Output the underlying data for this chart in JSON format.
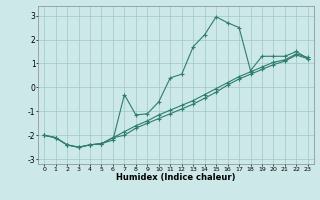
{
  "xlabel": "Humidex (Indice chaleur)",
  "background_color": "#cce8e8",
  "grid_color": "#a0c8c8",
  "line_color": "#2e7d6e",
  "marker": "+",
  "markersize": 3.5,
  "linewidth": 0.8,
  "xlim": [
    -0.5,
    23.5
  ],
  "ylim": [
    -3.2,
    3.4
  ],
  "xticks": [
    0,
    1,
    2,
    3,
    4,
    5,
    6,
    7,
    8,
    9,
    10,
    11,
    12,
    13,
    14,
    15,
    16,
    17,
    18,
    19,
    20,
    21,
    22,
    23
  ],
  "yticks": [
    -3,
    -2,
    -1,
    0,
    1,
    2,
    3
  ],
  "series1_x": [
    0,
    1,
    2,
    3,
    4,
    5,
    6,
    7,
    8,
    9,
    10,
    11,
    12,
    13,
    14,
    15,
    16,
    17,
    18,
    19,
    20,
    21,
    22,
    23
  ],
  "series1_y": [
    -2.0,
    -2.1,
    -2.4,
    -2.5,
    -2.4,
    -2.35,
    -2.2,
    -0.3,
    -1.15,
    -1.1,
    -0.6,
    0.4,
    0.55,
    1.7,
    2.2,
    2.95,
    2.7,
    2.5,
    0.7,
    1.3,
    1.3,
    1.3,
    1.5,
    1.2
  ],
  "series2_x": [
    0,
    1,
    2,
    3,
    4,
    5,
    6,
    7,
    8,
    9,
    10,
    11,
    12,
    13,
    14,
    15,
    16,
    17,
    18,
    19,
    20,
    21,
    22,
    23
  ],
  "series2_y": [
    -2.0,
    -2.1,
    -2.4,
    -2.5,
    -2.4,
    -2.35,
    -2.1,
    -2.0,
    -1.7,
    -1.5,
    -1.3,
    -1.1,
    -0.9,
    -0.7,
    -0.45,
    -0.2,
    0.1,
    0.35,
    0.55,
    0.75,
    0.95,
    1.1,
    1.35,
    1.2
  ],
  "series3_x": [
    0,
    1,
    2,
    3,
    4,
    5,
    6,
    7,
    8,
    9,
    10,
    11,
    12,
    13,
    14,
    15,
    16,
    17,
    18,
    19,
    20,
    21,
    22,
    23
  ],
  "series3_y": [
    -2.0,
    -2.1,
    -2.4,
    -2.5,
    -2.4,
    -2.35,
    -2.1,
    -1.85,
    -1.6,
    -1.4,
    -1.15,
    -0.95,
    -0.75,
    -0.55,
    -0.3,
    -0.05,
    0.2,
    0.45,
    0.65,
    0.85,
    1.05,
    1.15,
    1.4,
    1.25
  ]
}
